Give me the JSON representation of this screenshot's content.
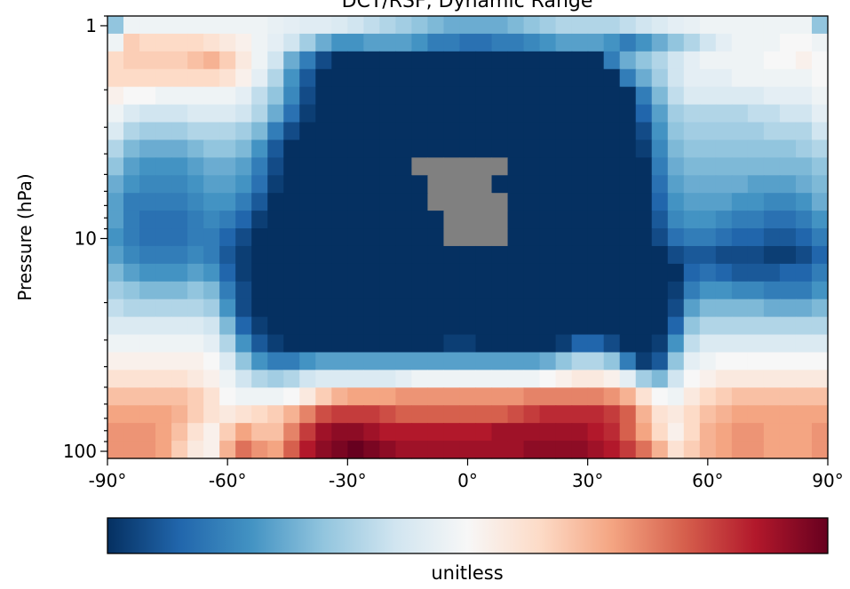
{
  "chart_data": {
    "type": "heatmap",
    "title": "DCT/RSF, Dynamic Range",
    "xlabel": "",
    "ylabel": "Pressure (hPa)",
    "x_axis": {
      "range": [
        -90,
        90
      ],
      "ticks": [
        -90,
        -60,
        -30,
        0,
        30,
        60,
        90
      ],
      "tick_labels": [
        "-90°",
        "-60°",
        "-30°",
        "0°",
        "30°",
        "60°",
        "90°"
      ]
    },
    "y_axis": {
      "scale": "log",
      "inverted": true,
      "range_hPa": [
        0.9,
        100
      ],
      "ticks": [
        1,
        10,
        100
      ],
      "tick_labels": [
        "1",
        "10",
        "100"
      ]
    },
    "grid": false,
    "colormap": "RdBu_r",
    "missing_color": "#808080",
    "colorbar": {
      "placement": "bottom",
      "label": "unitless"
    },
    "columns": 45,
    "column_centers_deg": [
      -88,
      -84,
      -80,
      -76,
      -72,
      -68,
      -64,
      -60,
      -56,
      -52,
      -48,
      -44,
      -40,
      -36,
      -32,
      -28,
      -24,
      -20,
      -16,
      -12,
      -8,
      -4,
      0,
      4,
      8,
      12,
      16,
      20,
      24,
      28,
      32,
      36,
      40,
      44,
      48,
      52,
      56,
      60,
      64,
      68,
      72,
      76,
      80,
      84,
      88
    ],
    "row_pressures_hPa": [
      0.85,
      1.04,
      1.27,
      1.55,
      1.9,
      2.33,
      2.85,
      3.48,
      4.26,
      5.21,
      6.37,
      7.79,
      9.53,
      11.66,
      14.25,
      17.43,
      21.31,
      26.07,
      31.88,
      38.99,
      47.68,
      58.31,
      71.32,
      87.22,
      106.66
    ],
    "anomaly_scale": "approximate colormap position: -1 = darkest blue, 0 = white, +1 = darkest red; null = missing",
    "rows": [
      [
        -0.4,
        -0.05,
        -0.05,
        -0.05,
        -0.05,
        -0.05,
        -0.05,
        -0.05,
        -0.05,
        -0.05,
        -0.08,
        -0.1,
        -0.12,
        -0.12,
        -0.15,
        -0.2,
        -0.25,
        -0.3,
        -0.35,
        -0.4,
        -0.45,
        -0.5,
        -0.5,
        -0.5,
        -0.5,
        -0.45,
        -0.4,
        -0.35,
        -0.3,
        -0.3,
        -0.3,
        -0.3,
        -0.25,
        -0.2,
        -0.15,
        -0.1,
        -0.08,
        -0.05,
        -0.05,
        -0.05,
        -0.05,
        -0.05,
        -0.05,
        -0.05,
        -0.4
      ],
      [
        -0.05,
        0.25,
        0.2,
        0.2,
        0.2,
        0.2,
        0.15,
        0.1,
        0.05,
        -0.05,
        -0.1,
        -0.2,
        -0.35,
        -0.5,
        -0.6,
        -0.6,
        -0.55,
        -0.55,
        -0.55,
        -0.6,
        -0.7,
        -0.7,
        -0.75,
        -0.75,
        -0.7,
        -0.7,
        -0.65,
        -0.6,
        -0.55,
        -0.55,
        -0.55,
        -0.6,
        -0.7,
        -0.6,
        -0.5,
        -0.4,
        -0.3,
        -0.2,
        -0.1,
        -0.05,
        -0.05,
        -0.05,
        0.0,
        0.0,
        -0.05
      ],
      [
        0.2,
        0.25,
        0.25,
        0.25,
        0.25,
        0.3,
        0.35,
        0.25,
        0.1,
        -0.05,
        -0.2,
        -0.5,
        -0.7,
        -0.9,
        -1.0,
        -1.0,
        -1.0,
        -1.0,
        -1.0,
        -1.0,
        -1.0,
        -1.0,
        -1.0,
        -1.0,
        -1.0,
        -1.0,
        -1.0,
        -1.0,
        -1.0,
        -1.0,
        -1.0,
        -0.7,
        -0.5,
        -0.4,
        -0.3,
        -0.2,
        -0.1,
        -0.05,
        -0.05,
        -0.05,
        -0.05,
        0.0,
        0.0,
        0.05,
        0.0
      ],
      [
        0.2,
        0.2,
        0.2,
        0.2,
        0.2,
        0.2,
        0.2,
        0.15,
        0.05,
        -0.1,
        -0.3,
        -0.6,
        -0.85,
        -1.0,
        -1.0,
        -1.0,
        -1.0,
        -1.0,
        -1.0,
        -1.0,
        -1.0,
        -1.0,
        -1.0,
        -1.0,
        -1.0,
        -1.0,
        -1.0,
        -1.0,
        -1.0,
        -1.0,
        -1.0,
        -1.0,
        -0.7,
        -0.5,
        -0.35,
        -0.2,
        -0.1,
        -0.1,
        -0.1,
        -0.05,
        -0.05,
        -0.05,
        -0.05,
        -0.05,
        0.0
      ],
      [
        0.05,
        0.0,
        0.0,
        -0.05,
        -0.05,
        -0.05,
        -0.05,
        -0.05,
        -0.1,
        -0.25,
        -0.4,
        -0.65,
        -0.9,
        -1.0,
        -1.0,
        -1.0,
        -1.0,
        -1.0,
        -1.0,
        -1.0,
        -1.0,
        -1.0,
        -1.0,
        -1.0,
        -1.0,
        -1.0,
        -1.0,
        -1.0,
        -1.0,
        -1.0,
        -1.0,
        -1.0,
        -1.0,
        -0.7,
        -0.45,
        -0.25,
        -0.15,
        -0.15,
        -0.15,
        -0.15,
        -0.15,
        -0.1,
        -0.1,
        -0.1,
        -0.05
      ],
      [
        -0.05,
        -0.15,
        -0.2,
        -0.2,
        -0.2,
        -0.15,
        -0.15,
        -0.15,
        -0.2,
        -0.3,
        -0.5,
        -0.75,
        -0.95,
        -1.0,
        -1.0,
        -1.0,
        -1.0,
        -1.0,
        -1.0,
        -1.0,
        -1.0,
        -1.0,
        -1.0,
        -1.0,
        -1.0,
        -1.0,
        -1.0,
        -1.0,
        -1.0,
        -1.0,
        -1.0,
        -1.0,
        -1.0,
        -0.8,
        -0.55,
        -0.35,
        -0.3,
        -0.3,
        -0.3,
        -0.3,
        -0.25,
        -0.25,
        -0.2,
        -0.2,
        -0.1
      ],
      [
        -0.15,
        -0.3,
        -0.35,
        -0.35,
        -0.35,
        -0.3,
        -0.3,
        -0.3,
        -0.35,
        -0.45,
        -0.7,
        -0.9,
        -1.0,
        -1.0,
        -1.0,
        -1.0,
        -1.0,
        -1.0,
        -1.0,
        -1.0,
        -1.0,
        -1.0,
        -1.0,
        -1.0,
        -1.0,
        -1.0,
        -1.0,
        -1.0,
        -1.0,
        -1.0,
        -1.0,
        -1.0,
        -1.0,
        -0.9,
        -0.6,
        -0.4,
        -0.35,
        -0.35,
        -0.35,
        -0.35,
        -0.35,
        -0.3,
        -0.3,
        -0.3,
        -0.2
      ],
      [
        -0.3,
        -0.45,
        -0.5,
        -0.5,
        -0.5,
        -0.45,
        -0.4,
        -0.4,
        -0.45,
        -0.6,
        -0.85,
        -1.0,
        -1.0,
        -1.0,
        -1.0,
        -1.0,
        -1.0,
        -1.0,
        -1.0,
        -1.0,
        -1.0,
        -1.0,
        -1.0,
        -1.0,
        -1.0,
        -1.0,
        -1.0,
        -1.0,
        -1.0,
        -1.0,
        -1.0,
        -1.0,
        -1.0,
        -0.95,
        -0.65,
        -0.45,
        -0.4,
        -0.4,
        -0.4,
        -0.4,
        -0.4,
        -0.4,
        -0.4,
        -0.35,
        -0.3
      ],
      [
        -0.4,
        -0.55,
        -0.6,
        -0.6,
        -0.6,
        -0.55,
        -0.5,
        -0.5,
        -0.55,
        -0.7,
        -0.9,
        -1.0,
        -1.0,
        -1.0,
        -1.0,
        -1.0,
        -1.0,
        -1.0,
        -1.0,
        null,
        null,
        null,
        null,
        null,
        null,
        -1.0,
        -1.0,
        -1.0,
        -1.0,
        -1.0,
        -1.0,
        -1.0,
        -1.0,
        -1.0,
        -0.7,
        -0.5,
        -0.45,
        -0.45,
        -0.45,
        -0.45,
        -0.45,
        -0.45,
        -0.45,
        -0.45,
        -0.4
      ],
      [
        -0.5,
        -0.6,
        -0.65,
        -0.65,
        -0.65,
        -0.6,
        -0.55,
        -0.55,
        -0.6,
        -0.75,
        -0.95,
        -1.0,
        -1.0,
        -1.0,
        -1.0,
        -1.0,
        -1.0,
        -1.0,
        -1.0,
        -1.0,
        null,
        null,
        null,
        null,
        -1.0,
        -1.0,
        -1.0,
        -1.0,
        -1.0,
        -1.0,
        -1.0,
        -1.0,
        -1.0,
        -1.0,
        -0.75,
        -0.55,
        -0.5,
        -0.5,
        -0.5,
        -0.5,
        -0.55,
        -0.55,
        -0.55,
        -0.5,
        -0.45
      ],
      [
        -0.55,
        -0.7,
        -0.7,
        -0.7,
        -0.7,
        -0.65,
        -0.6,
        -0.6,
        -0.7,
        -0.85,
        -1.0,
        -1.0,
        -1.0,
        -1.0,
        -1.0,
        -1.0,
        -1.0,
        -1.0,
        -1.0,
        -1.0,
        null,
        null,
        null,
        null,
        null,
        -1.0,
        -1.0,
        -1.0,
        -1.0,
        -1.0,
        -1.0,
        -1.0,
        -1.0,
        -1.0,
        -0.8,
        -0.6,
        -0.55,
        -0.55,
        -0.55,
        -0.6,
        -0.6,
        -0.65,
        -0.65,
        -0.6,
        -0.5
      ],
      [
        -0.55,
        -0.7,
        -0.75,
        -0.75,
        -0.75,
        -0.7,
        -0.65,
        -0.7,
        -0.8,
        -0.95,
        -1.0,
        -1.0,
        -1.0,
        -1.0,
        -1.0,
        -1.0,
        -1.0,
        -1.0,
        -1.0,
        -1.0,
        -1.0,
        null,
        null,
        null,
        null,
        -1.0,
        -1.0,
        -1.0,
        -1.0,
        -1.0,
        -1.0,
        -1.0,
        -1.0,
        -1.0,
        -0.85,
        -0.65,
        -0.6,
        -0.6,
        -0.65,
        -0.7,
        -0.7,
        -0.75,
        -0.75,
        -0.7,
        -0.6
      ],
      [
        -0.6,
        -0.7,
        -0.75,
        -0.75,
        -0.75,
        -0.7,
        -0.7,
        -0.8,
        -0.9,
        -1.0,
        -1.0,
        -1.0,
        -1.0,
        -1.0,
        -1.0,
        -1.0,
        -1.0,
        -1.0,
        -1.0,
        -1.0,
        -1.0,
        null,
        null,
        null,
        null,
        -1.0,
        -1.0,
        -1.0,
        -1.0,
        -1.0,
        -1.0,
        -1.0,
        -1.0,
        -1.0,
        -0.9,
        -0.75,
        -0.7,
        -0.7,
        -0.75,
        -0.8,
        -0.8,
        -0.85,
        -0.85,
        -0.8,
        -0.7
      ],
      [
        -0.55,
        -0.65,
        -0.7,
        -0.7,
        -0.7,
        -0.65,
        -0.7,
        -0.85,
        -0.95,
        -1.0,
        -1.0,
        -1.0,
        -1.0,
        -1.0,
        -1.0,
        -1.0,
        -1.0,
        -1.0,
        -1.0,
        -1.0,
        -1.0,
        -1.0,
        -1.0,
        -1.0,
        -1.0,
        -1.0,
        -1.0,
        -1.0,
        -1.0,
        -1.0,
        -1.0,
        -1.0,
        -1.0,
        -1.0,
        -1.0,
        -0.9,
        -0.85,
        -0.85,
        -0.9,
        -0.9,
        -0.9,
        -0.95,
        -0.95,
        -0.9,
        -0.8
      ],
      [
        -0.45,
        -0.55,
        -0.6,
        -0.6,
        -0.6,
        -0.55,
        -0.6,
        -0.8,
        -0.95,
        -1.0,
        -1.0,
        -1.0,
        -1.0,
        -1.0,
        -1.0,
        -1.0,
        -1.0,
        -1.0,
        -1.0,
        -1.0,
        -1.0,
        -1.0,
        -1.0,
        -1.0,
        -1.0,
        -1.0,
        -1.0,
        -1.0,
        -1.0,
        -1.0,
        -1.0,
        -1.0,
        -1.0,
        -1.0,
        -1.0,
        -1.0,
        -0.8,
        -0.75,
        -0.8,
        -0.85,
        -0.85,
        -0.85,
        -0.8,
        -0.8,
        -0.7
      ],
      [
        -0.35,
        -0.4,
        -0.45,
        -0.45,
        -0.45,
        -0.4,
        -0.45,
        -0.7,
        -0.9,
        -1.0,
        -1.0,
        -1.0,
        -1.0,
        -1.0,
        -1.0,
        -1.0,
        -1.0,
        -1.0,
        -1.0,
        -1.0,
        -1.0,
        -1.0,
        -1.0,
        -1.0,
        -1.0,
        -1.0,
        -1.0,
        -1.0,
        -1.0,
        -1.0,
        -1.0,
        -1.0,
        -1.0,
        -1.0,
        -1.0,
        -0.95,
        -0.7,
        -0.6,
        -0.6,
        -0.65,
        -0.65,
        -0.7,
        -0.7,
        -0.7,
        -0.6
      ],
      [
        -0.25,
        -0.3,
        -0.3,
        -0.3,
        -0.3,
        -0.3,
        -0.35,
        -0.6,
        -0.9,
        -1.0,
        -1.0,
        -1.0,
        -1.0,
        -1.0,
        -1.0,
        -1.0,
        -1.0,
        -1.0,
        -1.0,
        -1.0,
        -1.0,
        -1.0,
        -1.0,
        -1.0,
        -1.0,
        -1.0,
        -1.0,
        -1.0,
        -1.0,
        -1.0,
        -1.0,
        -1.0,
        -1.0,
        -1.0,
        -1.0,
        -0.9,
        -0.55,
        -0.45,
        -0.45,
        -0.45,
        -0.45,
        -0.5,
        -0.5,
        -0.5,
        -0.45
      ],
      [
        -0.15,
        -0.15,
        -0.15,
        -0.15,
        -0.15,
        -0.15,
        -0.2,
        -0.45,
        -0.8,
        -0.95,
        -1.0,
        -1.0,
        -1.0,
        -1.0,
        -1.0,
        -1.0,
        -1.0,
        -1.0,
        -1.0,
        -1.0,
        -1.0,
        -1.0,
        -1.0,
        -1.0,
        -1.0,
        -1.0,
        -1.0,
        -1.0,
        -1.0,
        -1.0,
        -1.0,
        -1.0,
        -1.0,
        -1.0,
        -1.0,
        -0.8,
        -0.4,
        -0.3,
        -0.3,
        -0.3,
        -0.3,
        -0.3,
        -0.3,
        -0.3,
        -0.3
      ],
      [
        -0.05,
        -0.05,
        -0.05,
        -0.05,
        -0.05,
        -0.05,
        -0.1,
        -0.3,
        -0.6,
        -0.85,
        -0.95,
        -1.0,
        -1.0,
        -1.0,
        -1.0,
        -1.0,
        -1.0,
        -1.0,
        -1.0,
        -1.0,
        -1.0,
        -0.95,
        -0.95,
        -1.0,
        -1.0,
        -1.0,
        -1.0,
        -1.0,
        -0.95,
        -0.8,
        -0.8,
        -0.9,
        -1.0,
        -1.0,
        -0.95,
        -0.6,
        -0.25,
        -0.15,
        -0.15,
        -0.15,
        -0.15,
        -0.15,
        -0.15,
        -0.15,
        -0.15
      ],
      [
        0.05,
        0.05,
        0.05,
        0.05,
        0.05,
        0.05,
        0.0,
        -0.15,
        -0.4,
        -0.6,
        -0.7,
        -0.7,
        -0.6,
        -0.55,
        -0.55,
        -0.55,
        -0.55,
        -0.55,
        -0.55,
        -0.55,
        -0.55,
        -0.55,
        -0.55,
        -0.55,
        -0.55,
        -0.55,
        -0.55,
        -0.5,
        -0.4,
        -0.3,
        -0.3,
        -0.4,
        -0.7,
        -0.95,
        -0.85,
        -0.4,
        -0.1,
        -0.05,
        0.0,
        0.0,
        0.0,
        0.0,
        0.0,
        0.0,
        0.0
      ],
      [
        0.15,
        0.15,
        0.15,
        0.15,
        0.15,
        0.1,
        0.05,
        -0.05,
        -0.2,
        -0.3,
        -0.35,
        -0.3,
        -0.2,
        -0.15,
        -0.15,
        -0.15,
        -0.15,
        -0.15,
        -0.1,
        -0.05,
        -0.05,
        -0.05,
        -0.05,
        -0.05,
        -0.05,
        -0.05,
        -0.05,
        0.0,
        0.05,
        0.1,
        0.1,
        0.05,
        -0.1,
        -0.35,
        -0.45,
        -0.2,
        0.0,
        0.05,
        0.1,
        0.1,
        0.1,
        0.1,
        0.1,
        0.1,
        0.1
      ],
      [
        0.3,
        0.3,
        0.3,
        0.3,
        0.3,
        0.25,
        0.15,
        0.0,
        -0.05,
        -0.05,
        -0.05,
        0.0,
        0.1,
        0.25,
        0.35,
        0.4,
        0.4,
        0.4,
        0.45,
        0.45,
        0.45,
        0.45,
        0.45,
        0.45,
        0.45,
        0.45,
        0.5,
        0.5,
        0.5,
        0.5,
        0.5,
        0.45,
        0.35,
        0.15,
        0.0,
        -0.05,
        0.1,
        0.2,
        0.25,
        0.3,
        0.3,
        0.3,
        0.3,
        0.3,
        0.3
      ],
      [
        0.4,
        0.4,
        0.4,
        0.4,
        0.35,
        0.25,
        0.15,
        0.1,
        0.15,
        0.2,
        0.25,
        0.35,
        0.5,
        0.65,
        0.7,
        0.7,
        0.7,
        0.65,
        0.6,
        0.6,
        0.6,
        0.6,
        0.6,
        0.6,
        0.6,
        0.65,
        0.7,
        0.75,
        0.75,
        0.75,
        0.75,
        0.7,
        0.6,
        0.35,
        0.15,
        0.1,
        0.2,
        0.3,
        0.35,
        0.4,
        0.4,
        0.4,
        0.4,
        0.4,
        0.4
      ],
      [
        0.45,
        0.45,
        0.45,
        0.4,
        0.3,
        0.15,
        0.05,
        0.25,
        0.4,
        0.3,
        0.3,
        0.5,
        0.7,
        0.85,
        0.9,
        0.9,
        0.85,
        0.8,
        0.8,
        0.8,
        0.8,
        0.8,
        0.8,
        0.8,
        0.85,
        0.85,
        0.85,
        0.85,
        0.85,
        0.85,
        0.8,
        0.75,
        0.6,
        0.4,
        0.2,
        0.05,
        0.2,
        0.35,
        0.4,
        0.45,
        0.45,
        0.4,
        0.4,
        0.4,
        0.45
      ],
      [
        0.45,
        0.45,
        0.45,
        0.4,
        0.25,
        0.1,
        0.05,
        0.35,
        0.55,
        0.45,
        0.4,
        0.6,
        0.8,
        0.9,
        0.95,
        1.0,
        0.95,
        0.9,
        0.85,
        0.85,
        0.85,
        0.85,
        0.85,
        0.85,
        0.85,
        0.85,
        0.9,
        0.9,
        0.9,
        0.9,
        0.85,
        0.8,
        0.7,
        0.55,
        0.35,
        0.15,
        0.25,
        0.35,
        0.4,
        0.45,
        0.45,
        0.4,
        0.4,
        0.4,
        0.45
      ]
    ]
  }
}
